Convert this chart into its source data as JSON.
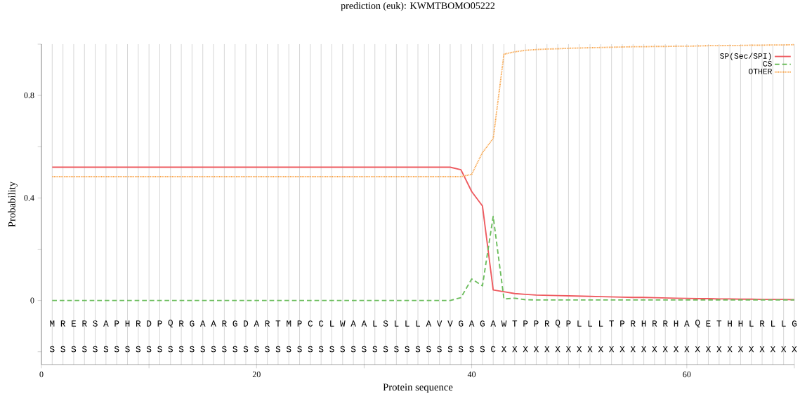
{
  "chart_data": {
    "type": "line",
    "title": "prediction (euk):  KWMTBOMO05222",
    "xlabel": "Protein sequence",
    "ylabel": "Probability",
    "x": [
      1,
      2,
      3,
      4,
      5,
      6,
      7,
      8,
      9,
      10,
      11,
      12,
      13,
      14,
      15,
      16,
      17,
      18,
      19,
      20,
      21,
      22,
      23,
      24,
      25,
      26,
      27,
      28,
      29,
      30,
      31,
      32,
      33,
      34,
      35,
      36,
      37,
      38,
      39,
      40,
      41,
      42,
      43,
      44,
      45,
      46,
      47,
      48,
      49,
      50,
      51,
      52,
      53,
      54,
      55,
      56,
      57,
      58,
      59,
      60,
      61,
      62,
      63,
      64,
      65,
      66,
      67,
      68,
      69,
      70
    ],
    "series": [
      {
        "name": "SP(Sec/SPI)",
        "color": "#ee5a5f",
        "line_style": "solid",
        "values": [
          0.52,
          0.52,
          0.52,
          0.52,
          0.52,
          0.52,
          0.52,
          0.52,
          0.52,
          0.52,
          0.52,
          0.52,
          0.52,
          0.52,
          0.52,
          0.52,
          0.52,
          0.52,
          0.52,
          0.52,
          0.52,
          0.52,
          0.52,
          0.52,
          0.52,
          0.52,
          0.52,
          0.52,
          0.52,
          0.52,
          0.52,
          0.52,
          0.52,
          0.52,
          0.52,
          0.52,
          0.52,
          0.52,
          0.51,
          0.425,
          0.369,
          0.041,
          0.034,
          0.027,
          0.024,
          0.021,
          0.02,
          0.019,
          0.018,
          0.017,
          0.016,
          0.015,
          0.014,
          0.013,
          0.012,
          0.012,
          0.011,
          0.01,
          0.009,
          0.008,
          0.007,
          0.007,
          0.006,
          0.006,
          0.005,
          0.005,
          0.004,
          0.004,
          0.004,
          0.003
        ]
      },
      {
        "name": "CS",
        "color": "#6cbd5d",
        "line_style": "dashed",
        "values": [
          0,
          0,
          0,
          0,
          0,
          0,
          0,
          0,
          0,
          0,
          0,
          0,
          0,
          0,
          0,
          0,
          0,
          0,
          0,
          0,
          0,
          0,
          0,
          0,
          0,
          0,
          0,
          0,
          0,
          0,
          0,
          0,
          0,
          0,
          0,
          0,
          0,
          0,
          0.011,
          0.084,
          0.057,
          0.328,
          0.006,
          0.009,
          0.003,
          0.002,
          0.002,
          0.002,
          0.002,
          0.002,
          0.002,
          0.002,
          0.002,
          0.002,
          0.002,
          0.002,
          0.002,
          0.002,
          0.002,
          0.002,
          0.002,
          0.002,
          0.002,
          0.002,
          0.002,
          0.002,
          0.002,
          0.002,
          0.002,
          0.002
        ]
      },
      {
        "name": "OTHER",
        "color": "#f9a54a",
        "line_style": "dotted",
        "values": [
          0.483,
          0.483,
          0.483,
          0.483,
          0.483,
          0.483,
          0.483,
          0.483,
          0.483,
          0.483,
          0.483,
          0.483,
          0.483,
          0.483,
          0.483,
          0.483,
          0.483,
          0.483,
          0.483,
          0.483,
          0.483,
          0.483,
          0.483,
          0.483,
          0.483,
          0.483,
          0.483,
          0.483,
          0.483,
          0.483,
          0.483,
          0.483,
          0.483,
          0.483,
          0.483,
          0.483,
          0.483,
          0.483,
          0.483,
          0.492,
          0.577,
          0.632,
          0.961,
          0.97,
          0.976,
          0.979,
          0.981,
          0.982,
          0.984,
          0.985,
          0.986,
          0.987,
          0.988,
          0.989,
          0.99,
          0.99,
          0.991,
          0.991,
          0.992,
          0.992,
          0.993,
          0.994,
          0.994,
          0.995,
          0.995,
          0.996,
          0.996,
          0.997,
          0.997,
          0.998
        ]
      }
    ],
    "xlim": [
      0,
      70
    ],
    "ylim": [
      -0.25,
      1
    ],
    "xticks": [
      0,
      {
        "value": 10,
        "label": null
      },
      20,
      {
        "value": 30,
        "label": null
      },
      40,
      {
        "value": 50,
        "label": null
      },
      60,
      {
        "value": 70,
        "label": null
      }
    ],
    "yticks": [
      {
        "value": -0.2,
        "label": null
      },
      0,
      {
        "value": 0.2,
        "label": null
      },
      0.4,
      {
        "value": 0.6,
        "label": null
      },
      0.8,
      {
        "value": 1,
        "label": null
      }
    ],
    "grid": "x",
    "legend": "top right",
    "annotations": [
      "M",
      "R",
      "E",
      "R",
      "S",
      "A",
      "P",
      "H",
      "R",
      "D",
      "P",
      "Q",
      "R",
      "G",
      "A",
      "A",
      "R",
      "G",
      "D",
      "A",
      "R",
      "T",
      "M",
      "P",
      "C",
      "C",
      "L",
      "W",
      "A",
      "A",
      "L",
      "S",
      "L",
      "L",
      "L",
      "A",
      "V",
      "V",
      "G",
      "A",
      "G",
      "A",
      "W",
      "T",
      "P",
      "P",
      "R",
      "Q",
      "P",
      "L",
      "L",
      "L",
      "T",
      "P",
      "R",
      "H",
      "R",
      "R",
      "H",
      "A",
      "Q",
      "E",
      "T",
      "H",
      "H",
      "L",
      "R",
      "L",
      "L",
      "G",
      "S",
      "S",
      "S",
      "S",
      "S",
      "S",
      "S",
      "S",
      "S",
      "S",
      "S",
      "S",
      "S",
      "S",
      "S",
      "S",
      "S",
      "S",
      "S",
      "S",
      "S",
      "S",
      "S",
      "S",
      "S",
      "S",
      "S",
      "S",
      "S",
      "S",
      "S",
      "S",
      "S",
      "S",
      "S",
      "S",
      "S",
      "S",
      "S",
      "S",
      "S",
      "C",
      "X",
      "X",
      "X",
      "X",
      "X",
      "X",
      "X",
      "X",
      "X",
      "X",
      "X",
      "X",
      "X",
      "X",
      "X",
      "X",
      "X",
      "X",
      "X",
      "X",
      "X",
      "X",
      "X",
      "X",
      "X",
      "X",
      "X",
      "X"
    ]
  }
}
